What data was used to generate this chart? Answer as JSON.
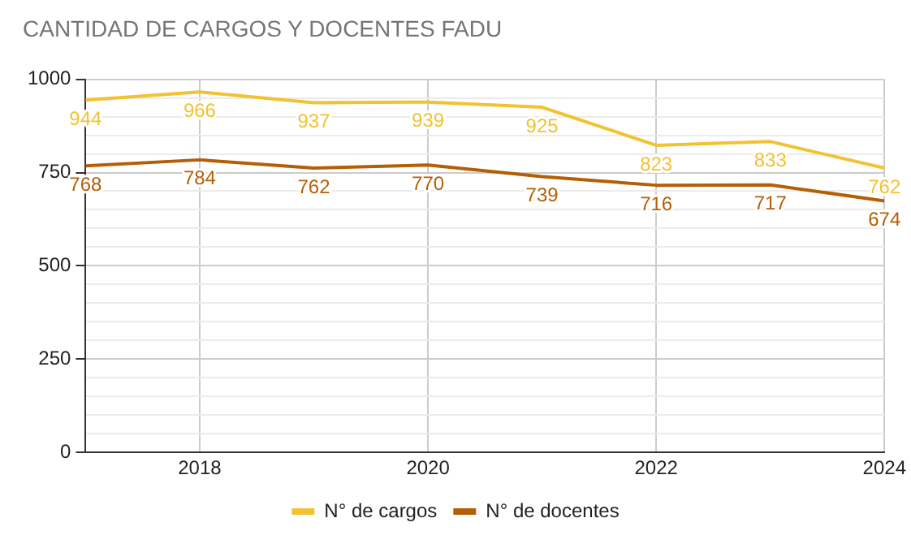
{
  "chart_data": {
    "type": "line",
    "title": "CANTIDAD DE CARGOS Y DOCENTES FADU",
    "x": [
      2017,
      2018,
      2019,
      2020,
      2021,
      2022,
      2023,
      2024
    ],
    "series": [
      {
        "name": "N° de cargos",
        "color": "#f1c232",
        "values": [
          944,
          966,
          937,
          939,
          925,
          823,
          833,
          762
        ]
      },
      {
        "name": "N° de docentes",
        "color": "#b45f06",
        "values": [
          768,
          784,
          762,
          770,
          739,
          716,
          717,
          674
        ]
      }
    ],
    "xlim": [
      2017,
      2024
    ],
    "xticks": [
      2018,
      2020,
      2022,
      2024
    ],
    "ylim": [
      0,
      1000
    ],
    "yticks": [
      0,
      {
        "value": 50,
        "label": null
      },
      {
        "value": 100,
        "label": null
      },
      {
        "value": 150,
        "label": null
      },
      {
        "value": 200,
        "label": null
      },
      250,
      {
        "value": 300,
        "label": null
      },
      {
        "value": 350,
        "label": null
      },
      {
        "value": 400,
        "label": null
      },
      {
        "value": 450,
        "label": null
      },
      500,
      {
        "value": 550,
        "label": null
      },
      {
        "value": 600,
        "label": null
      },
      {
        "value": 650,
        "label": null
      },
      {
        "value": 700,
        "label": null
      },
      750,
      {
        "value": 800,
        "label": null
      },
      {
        "value": 850,
        "label": null
      },
      {
        "value": 900,
        "label": null
      },
      {
        "value": 950,
        "label": null
      },
      1000
    ],
    "grid": true,
    "legend": "bottom",
    "data_labels": true,
    "marker": "none",
    "line_style": "solid"
  }
}
